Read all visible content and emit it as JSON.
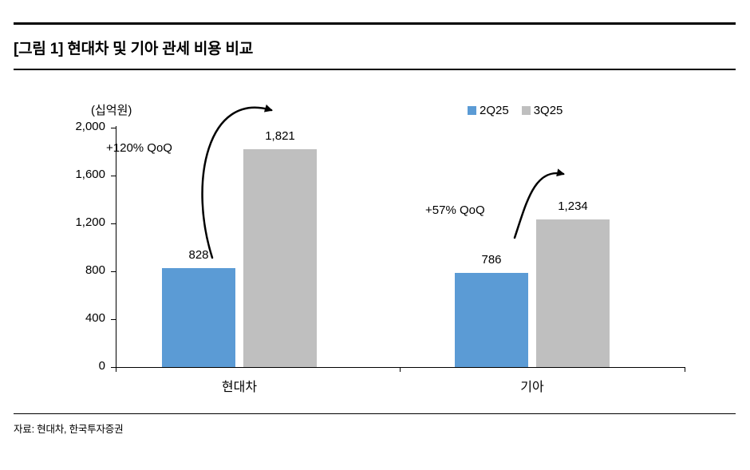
{
  "header": {
    "title": "[그림 1] 현대차 및 기아 관세 비용 비교"
  },
  "chart_data": {
    "type": "bar",
    "title": "[그림 1] 현대차 및 기아 관세 비용 비교",
    "unit_label": "(십억원)",
    "categories": [
      "현대차",
      "기아"
    ],
    "series": [
      {
        "name": "2Q25",
        "color": "#5b9bd5",
        "values": [
          828,
          786
        ],
        "value_labels": [
          "828",
          "786"
        ]
      },
      {
        "name": "3Q25",
        "color": "#bfbfbf",
        "values": [
          1821,
          1234
        ],
        "value_labels": [
          "1,821",
          "1,234"
        ]
      }
    ],
    "annotations": [
      {
        "text": "+120% QoQ",
        "target": "현대차"
      },
      {
        "text": "+57% QoQ",
        "target": "기아"
      }
    ],
    "ylim": [
      0,
      2000
    ],
    "ytick_step": 400,
    "yticks": [
      "0",
      "400",
      "800",
      "1,200",
      "1,600",
      "2,000"
    ],
    "legend_position": "top-right",
    "grid": false
  },
  "footer": {
    "source": "자료: 현대차, 한국투자증권"
  }
}
